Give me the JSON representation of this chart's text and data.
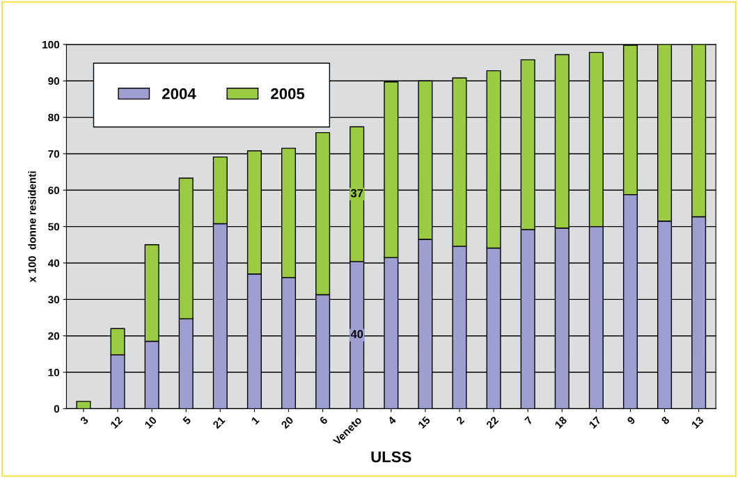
{
  "chart_data": {
    "type": "bar",
    "stacked": true,
    "xlabel": "ULSS",
    "ylabel": "x 100  donne residenti",
    "categories": [
      "3",
      "12",
      "10",
      "5",
      "21",
      "1",
      "20",
      "6",
      "Veneto",
      "4",
      "15",
      "2",
      "22",
      "7",
      "18",
      "17",
      "9",
      "8",
      "13"
    ],
    "series": [
      {
        "name": "2004",
        "color": "#9e9fd0",
        "values": [
          0,
          14.8,
          18.5,
          24.7,
          50.8,
          37,
          36,
          31.3,
          40.4,
          41.5,
          46.5,
          44.6,
          44.1,
          49.2,
          49.6,
          50,
          58.8,
          51.5,
          52.7
        ],
        "value_labels": [
          null,
          null,
          null,
          null,
          null,
          null,
          null,
          null,
          "40",
          null,
          null,
          null,
          null,
          null,
          null,
          null,
          null,
          null,
          null
        ]
      },
      {
        "name": "2005",
        "color": "#9bcb43",
        "values": [
          2,
          7.2,
          26.5,
          38.6,
          18.3,
          33.8,
          35.5,
          44.5,
          37,
          48.2,
          43.5,
          46.2,
          48.7,
          46.6,
          47.6,
          47.8,
          41,
          48.5,
          47.3
        ],
        "value_labels": [
          null,
          null,
          null,
          null,
          null,
          null,
          null,
          null,
          "37",
          null,
          null,
          null,
          null,
          null,
          null,
          null,
          null,
          null,
          null
        ]
      }
    ],
    "ylim": [
      0,
      100
    ],
    "yticks": [
      0,
      10,
      20,
      30,
      40,
      50,
      60,
      70,
      80,
      90,
      100
    ],
    "grid": "y",
    "legend": "top left"
  }
}
